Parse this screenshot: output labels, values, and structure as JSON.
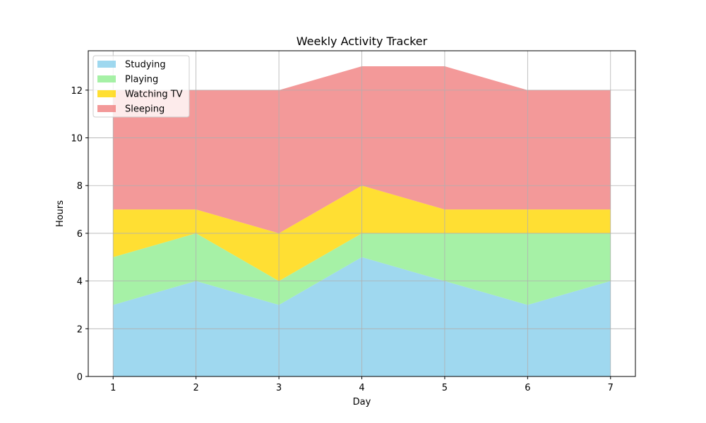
{
  "chart_data": {
    "type": "area",
    "stacked": true,
    "title": "Weekly Activity Tracker",
    "xlabel": "Day",
    "ylabel": "Hours",
    "x": [
      1,
      2,
      3,
      4,
      5,
      6,
      7
    ],
    "xlim": [
      0.7,
      7.3
    ],
    "ylim": [
      0,
      13.65
    ],
    "xticks": [
      1,
      2,
      3,
      4,
      5,
      6,
      7
    ],
    "yticks": [
      0,
      2,
      4,
      6,
      8,
      10,
      12
    ],
    "grid": true,
    "legend_position": "top-left",
    "series": [
      {
        "name": "Studying",
        "values": [
          3,
          4,
          3,
          5,
          4,
          3,
          4
        ],
        "color": "#87ceeb"
      },
      {
        "name": "Playing",
        "values": [
          2,
          2,
          1,
          1,
          2,
          3,
          2
        ],
        "color": "#90ee90"
      },
      {
        "name": "Watching TV",
        "values": [
          2,
          1,
          2,
          2,
          1,
          1,
          1
        ],
        "color": "#ffd700"
      },
      {
        "name": "Sleeping",
        "values": [
          5,
          5,
          6,
          5,
          6,
          5,
          5
        ],
        "color": "#f08080"
      }
    ]
  }
}
